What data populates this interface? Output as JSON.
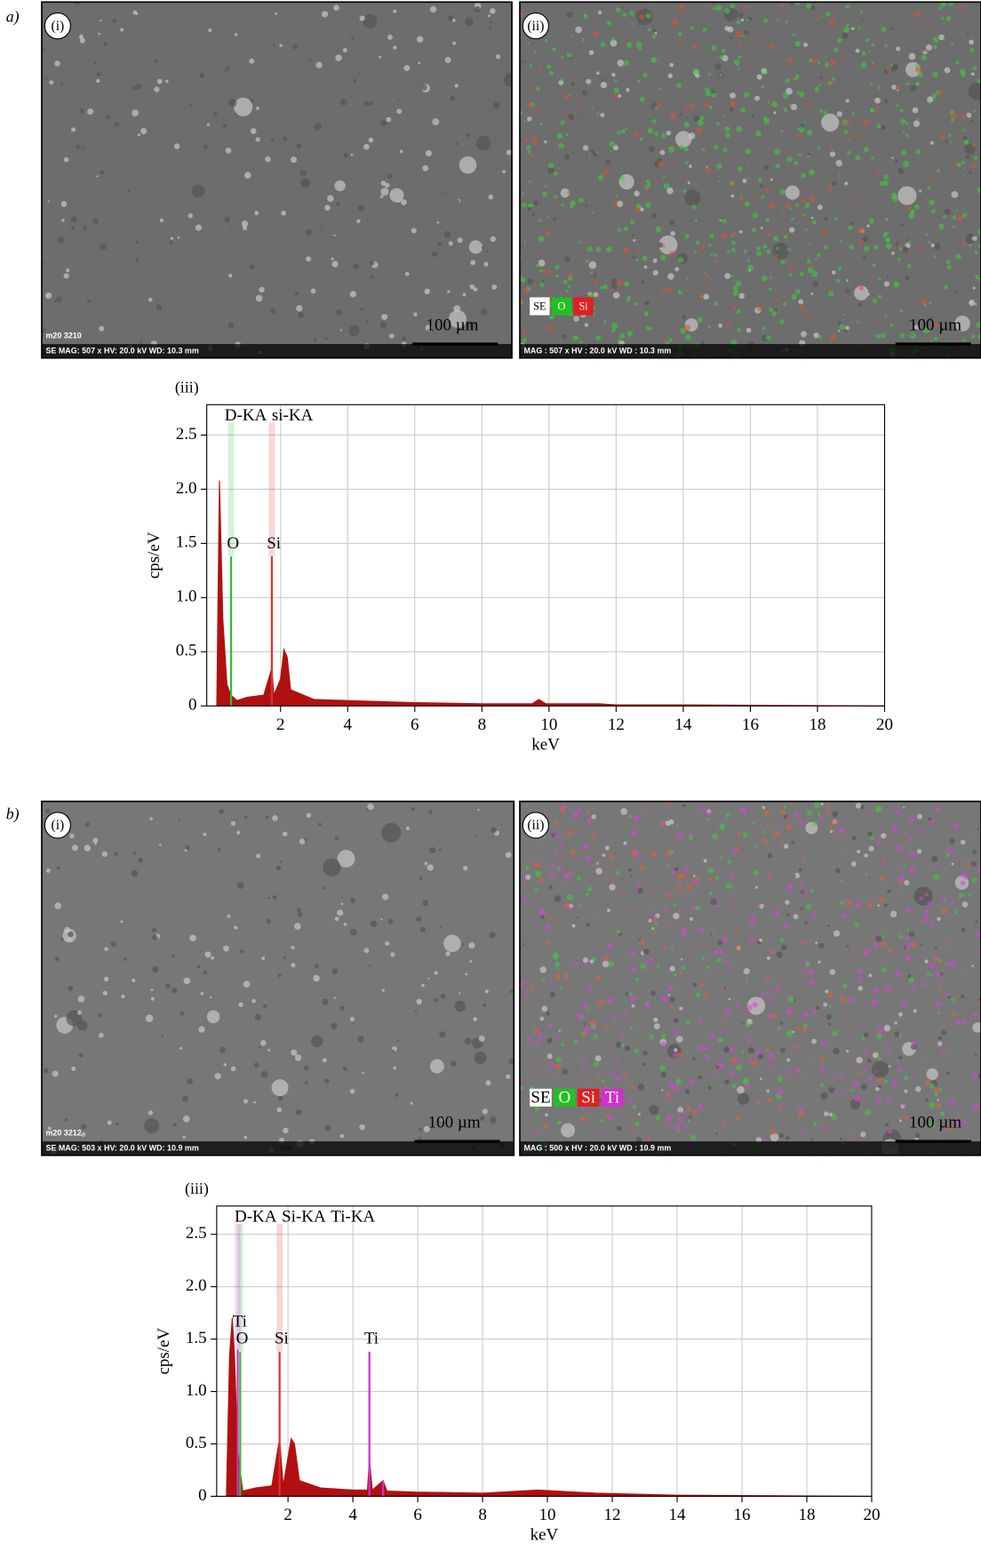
{
  "figure": {
    "a": {
      "label": "a)",
      "left": {
        "tag": "(i)",
        "id": "m20 3210",
        "info": "SE  MAG: 507 x  HV: 20.0 kV  WD: 10.3 mm",
        "scale": "100 µm"
      },
      "right": {
        "tag": "(ii)",
        "legend": [
          "SE",
          "O",
          "Si"
        ],
        "info": "MAG : 507 x  HV : 20.0 kV  WD : 10.3 mm",
        "scale": "100 µm"
      },
      "spectrum_tag": "(iii)"
    },
    "b": {
      "label": "b)",
      "left": {
        "tag": "(i)",
        "id": "m20 3212",
        "info": "SE  MAG: 503 x  HV: 20.0 kV  WD: 10.9 mm",
        "scale": "100 µm"
      },
      "right": {
        "tag": "(ii)",
        "legend": [
          "SE",
          "O",
          "Si",
          "Ti"
        ],
        "info": "MAG : 500 x  HV : 20.0 kV  WD : 10.9 mm",
        "scale": "100 µm"
      },
      "spectrum_tag": "(iii)"
    }
  },
  "chart_data": [
    {
      "type": "spectrum",
      "xlabel": "keV",
      "ylabel": "cps/eV",
      "xlim": [
        -0.2,
        20
      ],
      "ylim": [
        0,
        2.78
      ],
      "xticks": [
        2,
        4,
        6,
        8,
        10,
        12,
        14,
        16,
        18,
        20
      ],
      "yticks": [
        0,
        0.5,
        {
          "value": 1,
          "label": "1.0"
        },
        1.5,
        {
          "value": 2,
          "label": "2.0"
        },
        2.5
      ],
      "grid": true,
      "color": "#b01010",
      "x": [
        0.1,
        0.18,
        0.28,
        0.4,
        0.52,
        0.7,
        1.0,
        1.5,
        1.74,
        1.8,
        2.0,
        2.1,
        2.2,
        2.3,
        3,
        4,
        6,
        8,
        9.5,
        9.7,
        9.9,
        11.5,
        12,
        14,
        20
      ],
      "values": [
        0,
        2.08,
        0.8,
        0.2,
        0.1,
        0.05,
        0.08,
        0.1,
        0.35,
        0.1,
        0.25,
        0.52,
        0.45,
        0.15,
        0.06,
        0.05,
        0.03,
        0.02,
        0.02,
        0.06,
        0.02,
        0.02,
        0.01,
        0.01,
        0
      ],
      "series": [
        {
          "name": "D-KA",
          "color": "#2fbf2f",
          "x": [
            0.525
          ],
          "values": [
            1.38
          ],
          "labels": [
            "O"
          ]
        },
        {
          "name": "si-KA",
          "color": "#e03030",
          "x": [
            1.74
          ],
          "values": [
            1.38
          ],
          "labels": [
            "Si"
          ]
        }
      ]
    },
    {
      "type": "spectrum",
      "xlabel": "keV",
      "ylabel": "cps/eV",
      "xlim": [
        -0.2,
        20
      ],
      "ylim": [
        0,
        2.77
      ],
      "xticks": [
        2,
        4,
        6,
        8,
        10,
        12,
        14,
        16,
        18,
        20
      ],
      "yticks": [
        0,
        0.5,
        {
          "value": 1,
          "label": "1.0"
        },
        1.5,
        {
          "value": 2,
          "label": "2.0"
        },
        2.5
      ],
      "grid": true,
      "color": "#b01010",
      "x": [
        0.1,
        0.2,
        0.28,
        0.35,
        0.45,
        0.6,
        1.0,
        1.5,
        1.74,
        1.85,
        2.1,
        2.2,
        2.35,
        3,
        4,
        4.45,
        4.51,
        4.6,
        4.93,
        5.05,
        6,
        8,
        9.7,
        11.5,
        14,
        20
      ],
      "values": [
        0,
        1.35,
        1.7,
        1.35,
        0.45,
        0.05,
        0.08,
        0.1,
        0.55,
        0.1,
        0.55,
        0.5,
        0.15,
        0.08,
        0.06,
        0.06,
        0.35,
        0.06,
        0.15,
        0.05,
        0.04,
        0.03,
        0.06,
        0.03,
        0.01,
        0
      ],
      "series": [
        {
          "name": "D-KA",
          "color": "#2fbf2f",
          "x": [
            0.525
          ],
          "values": [
            1.38
          ],
          "labels": [
            "O"
          ]
        },
        {
          "name": "Si-KA",
          "color": "#e03030",
          "x": [
            1.74
          ],
          "values": [
            1.38
          ],
          "labels": [
            "Si"
          ]
        },
        {
          "name": "Ti-KA",
          "color": "#d030d0",
          "x": [
            0.45,
            4.51,
            4.93
          ],
          "values": [
            1.4,
            1.38,
            0.15
          ],
          "labels": [
            "Ti",
            "Ti",
            null
          ]
        }
      ]
    }
  ]
}
